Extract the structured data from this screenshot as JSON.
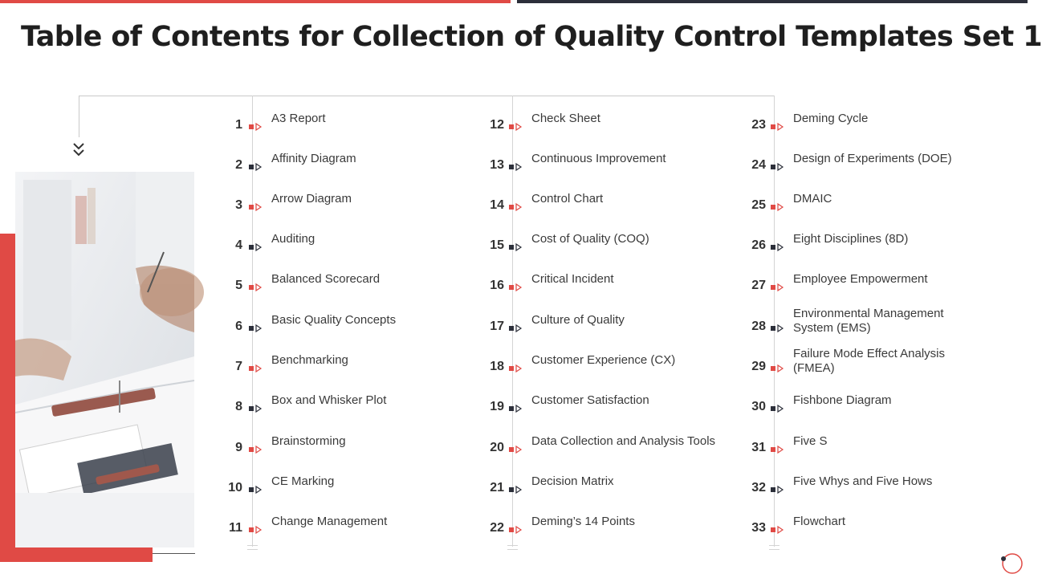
{
  "title": "Table of Contents for Collection of Quality Control Templates Set 1",
  "colors": {
    "accent": "#e04a45",
    "dark": "#2c2f3a"
  },
  "icons": [
    "chevrons-down-icon",
    "bullet-arrow-icon",
    "circle-dot-icon"
  ],
  "toc": [
    {
      "num": "1",
      "label": "A3 Report",
      "marker": "red"
    },
    {
      "num": "2",
      "label": "Affinity Diagram",
      "marker": "dark"
    },
    {
      "num": "3",
      "label": "Arrow Diagram",
      "marker": "red"
    },
    {
      "num": "4",
      "label": "Auditing",
      "marker": "dark"
    },
    {
      "num": "5",
      "label": "Balanced Scorecard",
      "marker": "red"
    },
    {
      "num": "6",
      "label": "Basic Quality Concepts",
      "marker": "dark"
    },
    {
      "num": "7",
      "label": "Benchmarking",
      "marker": "red"
    },
    {
      "num": "8",
      "label": "Box and Whisker Plot",
      "marker": "dark"
    },
    {
      "num": "9",
      "label": "Brainstorming",
      "marker": "red"
    },
    {
      "num": "10",
      "label": "CE Marking",
      "marker": "dark"
    },
    {
      "num": "11",
      "label": "Change Management",
      "marker": "red"
    },
    {
      "num": "12",
      "label": "Check Sheet",
      "marker": "red"
    },
    {
      "num": "13",
      "label": "Continuous Improvement",
      "marker": "dark"
    },
    {
      "num": "14",
      "label": "Control Chart",
      "marker": "red"
    },
    {
      "num": "15",
      "label": "Cost of Quality (COQ)",
      "marker": "dark"
    },
    {
      "num": "16",
      "label": "Critical Incident",
      "marker": "red"
    },
    {
      "num": "17",
      "label": "Culture of Quality",
      "marker": "dark"
    },
    {
      "num": "18",
      "label": "Customer Experience (CX)",
      "marker": "red"
    },
    {
      "num": "19",
      "label": "Customer Satisfaction",
      "marker": "dark"
    },
    {
      "num": "20",
      "label": "Data Collection and Analysis Tools",
      "marker": "red"
    },
    {
      "num": "21",
      "label": "Decision Matrix",
      "marker": "dark"
    },
    {
      "num": "22",
      "label": "Deming’s 14 Points",
      "marker": "red"
    },
    {
      "num": "23",
      "label": "Deming Cycle",
      "marker": "red"
    },
    {
      "num": "24",
      "label": "Design of Experiments (DOE)",
      "marker": "dark"
    },
    {
      "num": "25",
      "label": "DMAIC",
      "marker": "red"
    },
    {
      "num": "26",
      "label": "Eight Disciplines (8D)",
      "marker": "dark"
    },
    {
      "num": "27",
      "label": "Employee Empowerment",
      "marker": "red"
    },
    {
      "num": "28",
      "label": "Environmental Management System (EMS)",
      "marker": "dark"
    },
    {
      "num": "29",
      "label": "Failure Mode Effect Analysis (FMEA)",
      "marker": "red"
    },
    {
      "num": "30",
      "label": "Fishbone Diagram",
      "marker": "dark"
    },
    {
      "num": "31",
      "label": "Five S",
      "marker": "red"
    },
    {
      "num": "32",
      "label": "Five Whys and Five Hows",
      "marker": "dark"
    },
    {
      "num": "33",
      "label": "Flowchart",
      "marker": "red"
    }
  ]
}
